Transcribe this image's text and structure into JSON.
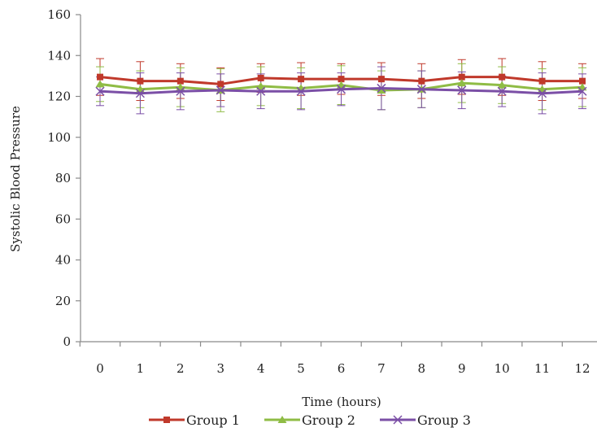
{
  "chart_data": {
    "type": "line",
    "title": "",
    "xlabel": "Time (hours)",
    "ylabel": "Systolic Blood Pressure",
    "x": [
      0,
      1,
      2,
      3,
      4,
      5,
      6,
      7,
      8,
      9,
      10,
      11,
      12
    ],
    "x_tick_labels": [
      "0",
      "1",
      "2",
      "3",
      "4",
      "5",
      "6",
      "7",
      "8",
      "9",
      "10",
      "11",
      "12"
    ],
    "ylim": [
      0,
      160
    ],
    "y_ticks": [
      0,
      20,
      40,
      60,
      80,
      100,
      120,
      140,
      160
    ],
    "y_tick_labels": [
      "0",
      "20",
      "40",
      "60",
      "80",
      "100",
      "120",
      "140",
      "160"
    ],
    "grid": false,
    "legend_position": "bottom",
    "series": [
      {
        "name": "Group 1",
        "color": "#c0392b",
        "marker": "square",
        "values": [
          129.5,
          127.5,
          127.5,
          126,
          129,
          128.5,
          128.5,
          128.5,
          127.5,
          129.5,
          129.5,
          127.5,
          127.5
        ],
        "error": [
          9,
          9.5,
          8.5,
          8,
          7,
          8,
          7.5,
          8,
          8.5,
          8.5,
          9,
          9.5,
          8.5
        ]
      },
      {
        "name": "Group 2",
        "color": "#8fbc45",
        "marker": "triangle",
        "values": [
          126,
          123.5,
          124.5,
          123,
          125,
          124,
          125.5,
          123,
          123.5,
          126.5,
          125.5,
          123.5,
          124.5
        ],
        "error": [
          8.5,
          9,
          9.5,
          10.5,
          9.5,
          10,
          9.5,
          9.5,
          9,
          9.5,
          9,
          10,
          9.5
        ]
      },
      {
        "name": "Group 3",
        "color": "#7b4fa6",
        "marker": "x",
        "values": [
          122.5,
          121.5,
          122.5,
          123,
          122.5,
          122.5,
          123.5,
          124,
          123.5,
          123,
          122.5,
          121.5,
          122.5
        ],
        "error": [
          7,
          10,
          9,
          8,
          8.5,
          9,
          8,
          10.5,
          9,
          9,
          7.5,
          10,
          8.5
        ]
      }
    ]
  }
}
